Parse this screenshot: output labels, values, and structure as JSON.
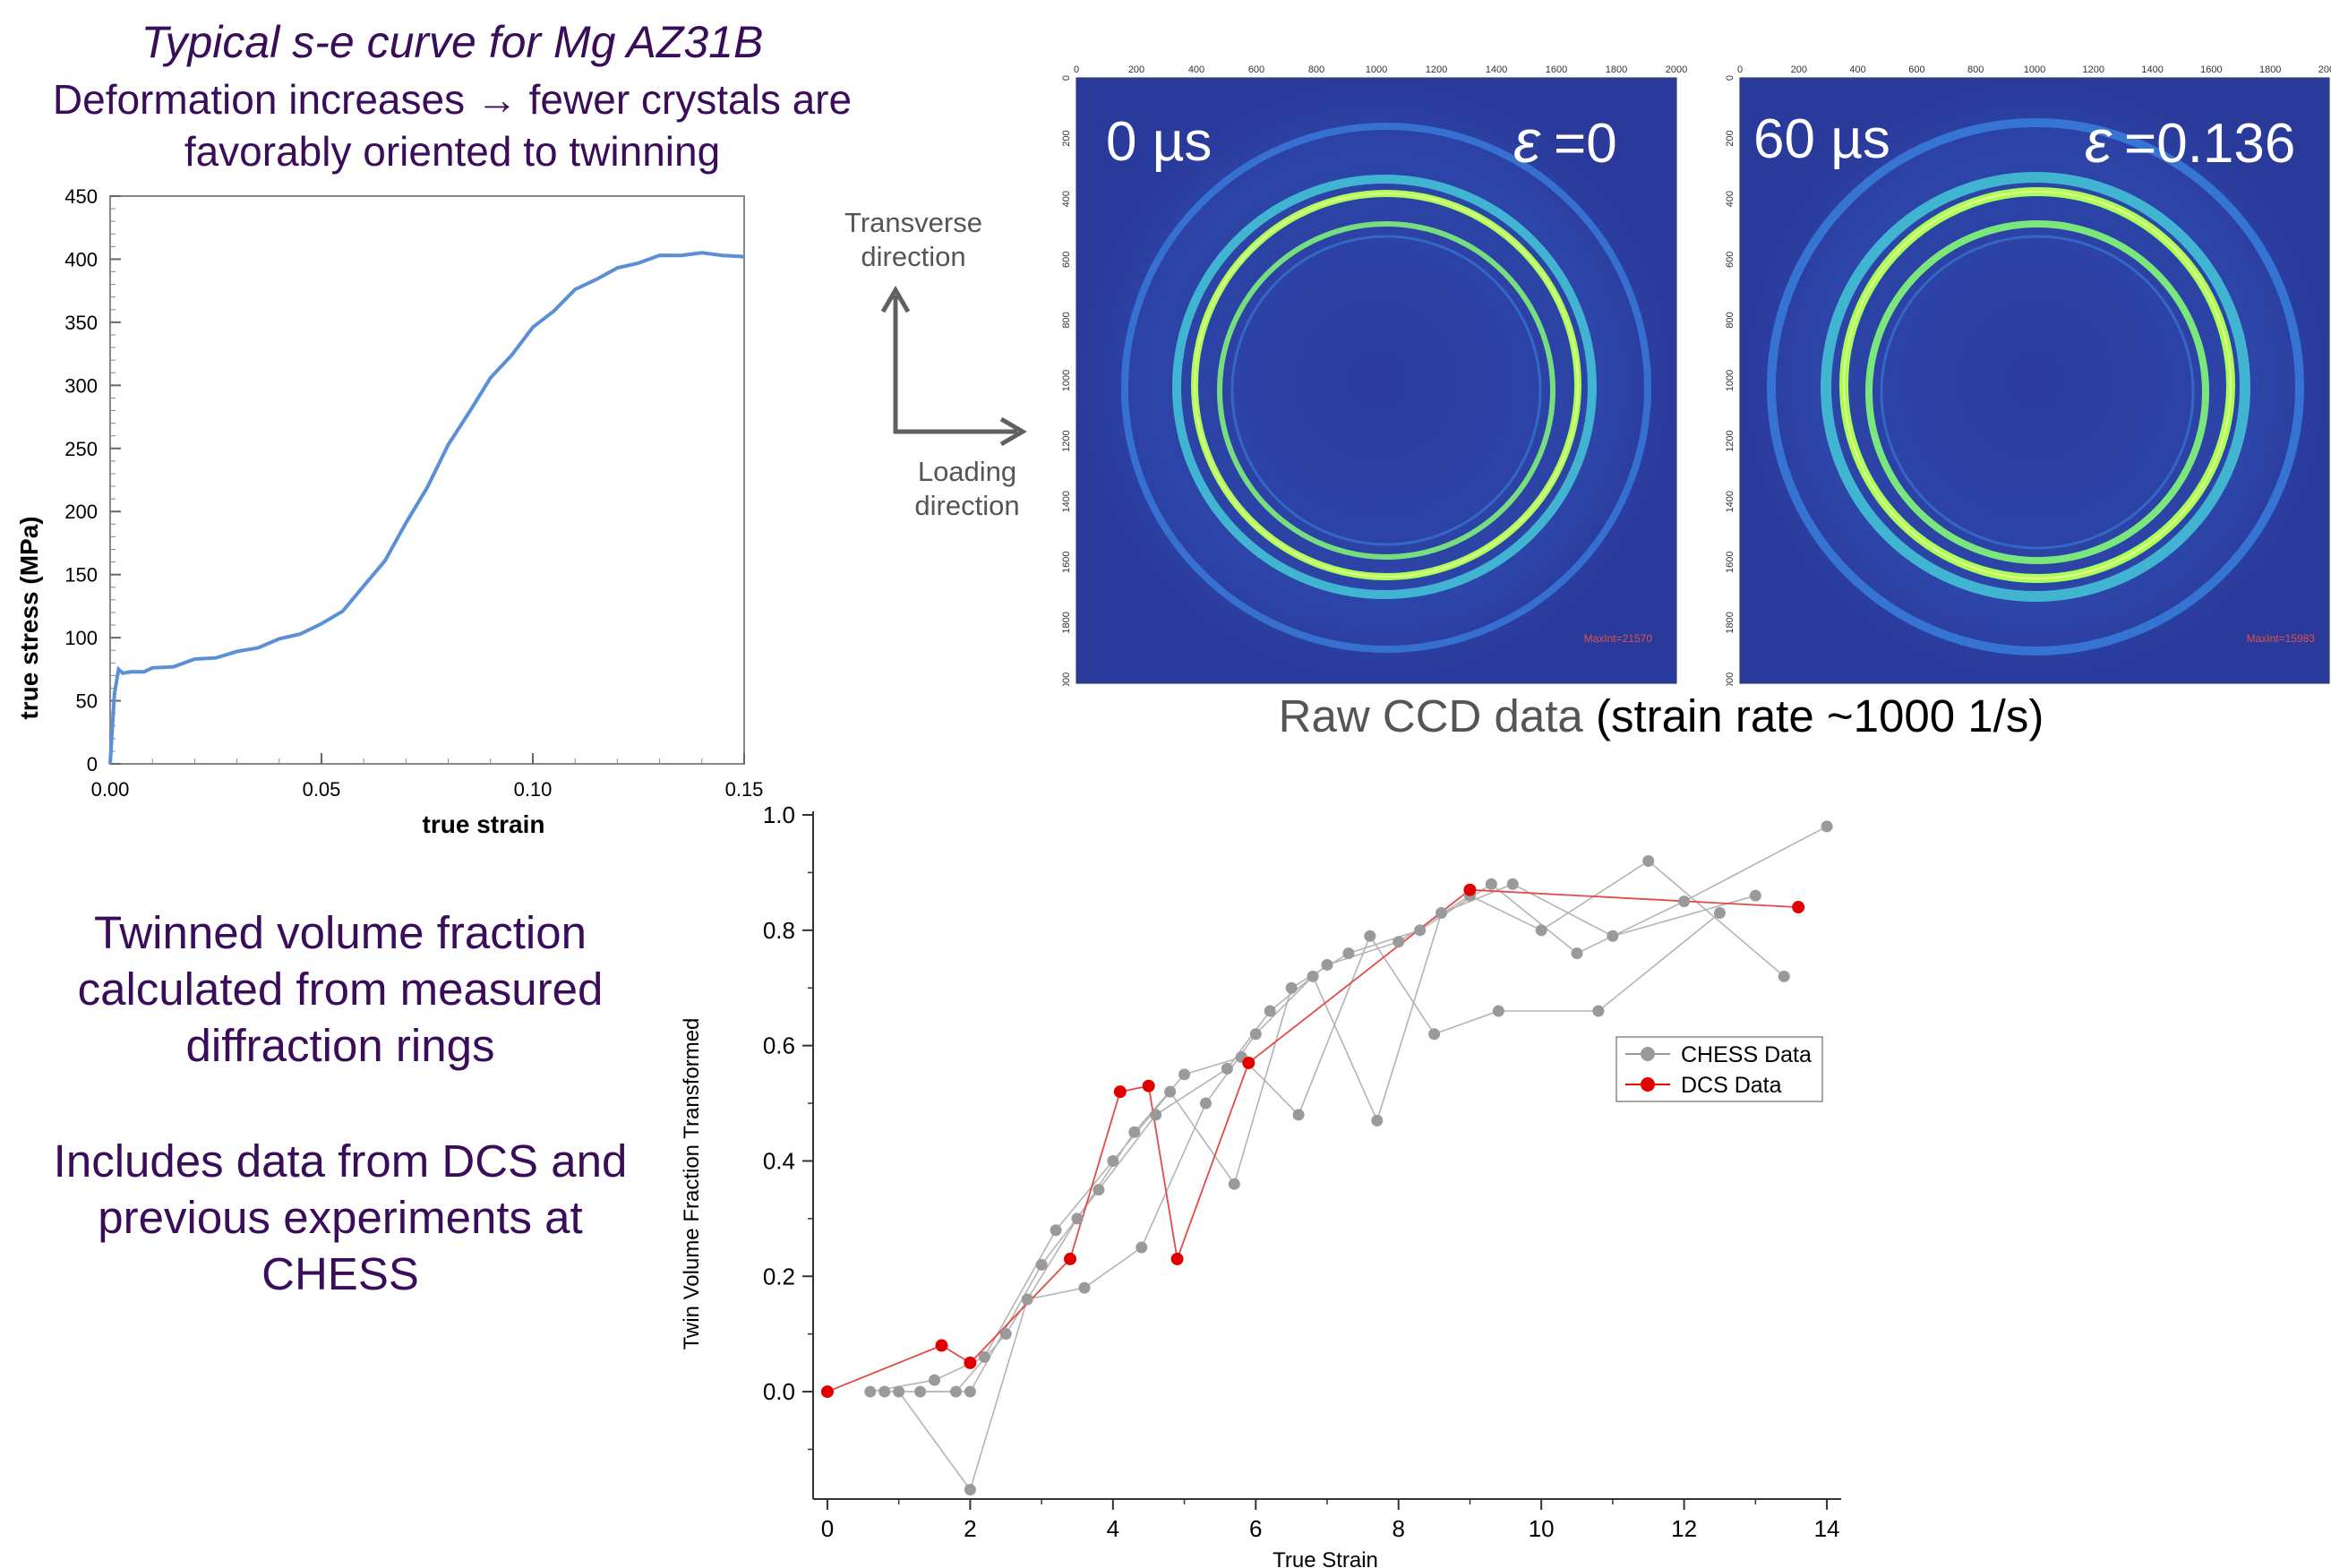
{
  "header": {
    "title": "Typical s-e curve for Mg AZ31B",
    "sub_line1": "Deformation increases → fewer crystals are",
    "sub_line2": "favorably oriented to twinning"
  },
  "side_text": {
    "p1": [
      "Twinned volume fraction",
      "calculated from measured",
      "diffraction rings"
    ],
    "p2": [
      "Includes data from DCS and",
      "previous experiments at",
      "CHESS"
    ]
  },
  "axes_arrows": {
    "transverse": [
      "Transverse",
      "direction"
    ],
    "loading": [
      "Loading",
      "direction"
    ]
  },
  "ccd": {
    "caption_grey": "Raw CCD data",
    "caption_black": "(strain rate ~1000 1/s)",
    "ticks": [
      "0",
      "200",
      "400",
      "600",
      "800",
      "1000",
      "1200",
      "1400",
      "1600",
      "1800",
      "2000"
    ],
    "images": [
      {
        "time": "0 µs",
        "epsilon_symbol": "ε",
        "epsilon_value": "=0",
        "maxint": "MaxInt=21570"
      },
      {
        "time": "60 µs",
        "epsilon_symbol": "ε",
        "epsilon_value": "=0.136",
        "maxint": "MaxInt=15983"
      }
    ],
    "colors": {
      "background": "#2a3a9a",
      "ring": "#a6ff5a"
    }
  },
  "chart_data": [
    {
      "type": "line",
      "xlabel": "true strain",
      "ylabel": "true stress (MPa)",
      "xlim": [
        0,
        0.15
      ],
      "ylim": [
        0,
        450
      ],
      "xticks": [
        "0.00",
        "0.05",
        "0.10",
        "0.15"
      ],
      "yticks": [
        "0",
        "50",
        "100",
        "150",
        "200",
        "250",
        "300",
        "350",
        "400",
        "450"
      ],
      "series": [
        {
          "color": "#5b8fd6",
          "x": [
            0,
            0.001,
            0.002,
            0.003,
            0.005,
            0.008,
            0.01,
            0.015,
            0.02,
            0.025,
            0.03,
            0.035,
            0.04,
            0.045,
            0.05,
            0.055,
            0.06,
            0.065,
            0.07,
            0.075,
            0.08,
            0.085,
            0.09,
            0.095,
            0.1,
            0.105,
            0.11,
            0.115,
            0.12,
            0.125,
            0.13,
            0.135,
            0.14,
            0.145,
            0.15
          ],
          "y": [
            0,
            55,
            75,
            73,
            72,
            74,
            75,
            78,
            82,
            85,
            88,
            93,
            98,
            104,
            110,
            122,
            140,
            162,
            190,
            220,
            252,
            280,
            305,
            325,
            345,
            360,
            375,
            385,
            392,
            398,
            402,
            404,
            404,
            404,
            402
          ]
        }
      ]
    },
    {
      "type": "scatter",
      "xlabel": "True Strain",
      "ylabel": "Twin Volume Fraction Transformed",
      "xlim": [
        -0.2,
        14.2
      ],
      "ylim": [
        -0.18,
        1.0
      ],
      "xticks": [
        "0",
        "2",
        "4",
        "6",
        "8",
        "10",
        "12",
        "14"
      ],
      "yticks": [
        "0.0",
        "0.2",
        "0.4",
        "0.6",
        "0.8",
        "1.0"
      ],
      "legend": "right-center",
      "series": [
        {
          "name": "CHESS Data",
          "color": "#9a9a9a",
          "x": [
            0.6,
            0.8,
            1.0,
            1.3,
            1.5,
            1.8,
            2.0,
            2.2,
            2.5,
            2.8,
            3.0,
            3.2,
            3.5,
            3.8,
            4.0,
            4.3,
            4.6,
            4.8,
            5.0,
            5.3,
            5.6,
            5.8,
            6.0,
            6.2,
            6.5,
            6.8,
            7.0,
            7.3,
            7.6,
            8.0,
            8.3,
            8.6,
            9.0,
            9.3,
            9.6,
            10.0,
            10.5,
            11.0,
            11.5,
            12.0,
            12.5,
            13.0,
            13.4,
            14.0,
            2.0,
            3.6,
            4.4,
            5.7,
            6.6,
            7.7,
            8.5,
            9.4,
            10.8
          ],
          "y": [
            0.0,
            0.0,
            0.0,
            0.0,
            0.02,
            0.0,
            -0.17,
            0.06,
            0.1,
            0.16,
            0.22,
            0.28,
            0.3,
            0.35,
            0.4,
            0.45,
            0.48,
            0.52,
            0.55,
            0.5,
            0.56,
            0.58,
            0.62,
            0.66,
            0.7,
            0.72,
            0.74,
            0.76,
            0.79,
            0.78,
            0.8,
            0.83,
            0.86,
            0.88,
            0.88,
            0.8,
            0.76,
            0.79,
            0.92,
            0.85,
            0.83,
            0.86,
            0.72,
            0.98,
            0.0,
            0.18,
            0.25,
            0.36,
            0.48,
            0.47,
            0.62,
            0.66,
            0.66
          ]
        },
        {
          "name": "DCS Data",
          "color": "#e00000",
          "x": [
            0.0,
            1.6,
            2.0,
            3.4,
            4.1,
            4.5,
            4.9,
            5.9,
            9.0,
            13.6
          ],
          "y": [
            0.0,
            0.08,
            0.05,
            0.23,
            0.52,
            0.53,
            0.23,
            0.57,
            0.87,
            0.84
          ]
        }
      ]
    }
  ]
}
